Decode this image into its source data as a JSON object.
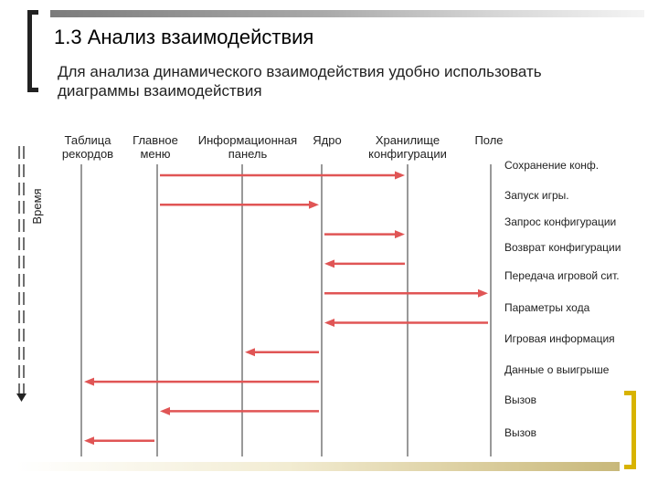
{
  "title": "1.3 Анализ взаимодействия",
  "subtitle": "Для анализа динамического взаимодействия удобно использовать диаграммы взаимодействия",
  "time_label": "Время",
  "participants": [
    {
      "id": "table",
      "lines": [
        "Таблица",
        "рекордов"
      ]
    },
    {
      "id": "menu",
      "lines": [
        "Главное",
        "меню"
      ]
    },
    {
      "id": "panel",
      "lines": [
        "Информационная",
        "панель"
      ]
    },
    {
      "id": "core",
      "lines": [
        "Ядро"
      ]
    },
    {
      "id": "storage",
      "lines": [
        "Хранилище",
        "конфигурации"
      ]
    },
    {
      "id": "field",
      "lines": [
        "Поле"
      ]
    }
  ],
  "messages": [
    {
      "label": "Сохранение конф.",
      "from": "menu",
      "to": "storage"
    },
    {
      "label": "Запуск игры.",
      "from": "menu",
      "to": "core"
    },
    {
      "label": "Запрос конфигурации",
      "from": "core",
      "to": "storage"
    },
    {
      "label": "Возврат конфигурации",
      "from": "storage",
      "to": "core"
    },
    {
      "label": "Передача игровой сит.",
      "from": "core",
      "to": "field"
    },
    {
      "label": "Параметры хода",
      "from": "field",
      "to": "core"
    },
    {
      "label": "Игровая информация",
      "from": "core",
      "to": "panel"
    },
    {
      "label": "Данные о выигрыше",
      "from": "core",
      "to": "table"
    },
    {
      "label": "Вызов",
      "from": "core",
      "to": "menu"
    },
    {
      "label": "Вызов",
      "from": "menu",
      "to": "table"
    }
  ],
  "colors": {
    "arrow": "#e05555",
    "lifeline": "#333333",
    "accent": "#d8b300"
  }
}
